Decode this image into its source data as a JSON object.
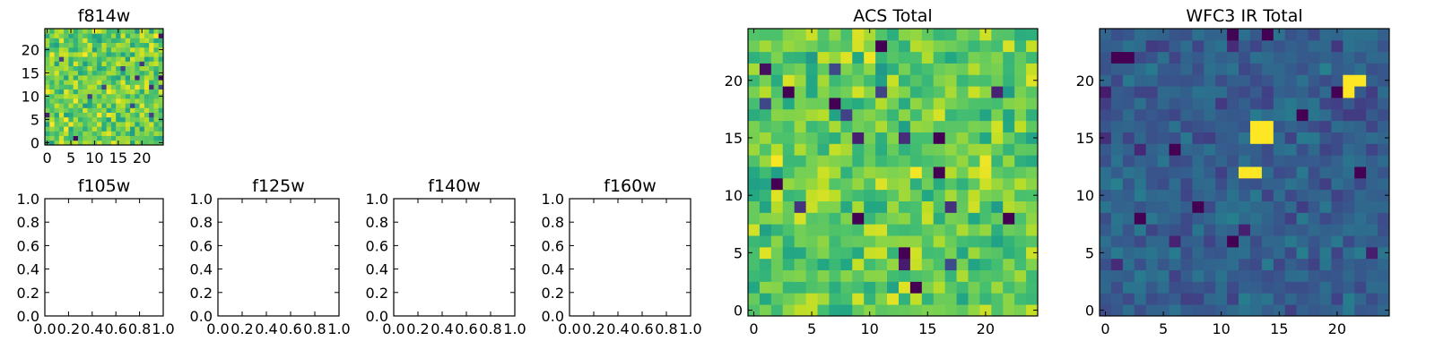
{
  "figure": {
    "panels_count": 7
  },
  "chart_data": [
    {
      "id": "f814w",
      "type": "heatmap",
      "title": "f814w",
      "grid_size": 25,
      "colormap": "viridis",
      "seed": 814,
      "mean": 0.78,
      "spread": 0.26,
      "hotspots": [],
      "xticks": [
        0,
        5,
        10,
        15,
        20
      ],
      "yticks": [
        0,
        5,
        10,
        15,
        20
      ],
      "xlim": [
        -0.5,
        24.5
      ],
      "ylim": [
        -0.5,
        24.5
      ]
    },
    {
      "id": "f105w",
      "type": "empty",
      "title": "f105w",
      "xticks": [
        "0.0",
        "0.2",
        "0.4",
        "0.6",
        "0.8",
        "1.0"
      ],
      "yticks": [
        "0.0",
        "0.2",
        "0.4",
        "0.6",
        "0.8",
        "1.0"
      ],
      "xlim": [
        0,
        1
      ],
      "ylim": [
        0,
        1
      ]
    },
    {
      "id": "f125w",
      "type": "empty",
      "title": "f125w",
      "xticks": [
        "0.0",
        "0.2",
        "0.4",
        "0.6",
        "0.8",
        "1.0"
      ],
      "yticks": [
        "0.0",
        "0.2",
        "0.4",
        "0.6",
        "0.8",
        "1.0"
      ],
      "xlim": [
        0,
        1
      ],
      "ylim": [
        0,
        1
      ]
    },
    {
      "id": "f140w",
      "type": "empty",
      "title": "f140w",
      "xticks": [
        "0.0",
        "0.2",
        "0.4",
        "0.6",
        "0.8",
        "1.0"
      ],
      "yticks": [
        "0.0",
        "0.2",
        "0.4",
        "0.6",
        "0.8",
        "1.0"
      ],
      "xlim": [
        0,
        1
      ],
      "ylim": [
        0,
        1
      ]
    },
    {
      "id": "f160w",
      "type": "empty",
      "title": "f160w",
      "xticks": [
        "0.0",
        "0.2",
        "0.4",
        "0.6",
        "0.8",
        "1.0"
      ],
      "yticks": [
        "0.0",
        "0.2",
        "0.4",
        "0.6",
        "0.8",
        "1.0"
      ],
      "xlim": [
        0,
        1
      ],
      "ylim": [
        0,
        1
      ]
    },
    {
      "id": "acs_total",
      "type": "heatmap",
      "title": "ACS Total",
      "grid_size": 25,
      "colormap": "viridis",
      "seed": 4242,
      "mean": 0.76,
      "spread": 0.24,
      "hotspots": [],
      "dark_cells": [
        [
          3,
          19
        ],
        [
          7,
          18
        ],
        [
          11,
          23
        ],
        [
          13,
          5
        ],
        [
          14,
          2
        ],
        [
          16,
          15
        ],
        [
          16,
          12
        ],
        [
          22,
          8
        ],
        [
          9,
          8
        ],
        [
          2,
          11
        ]
      ],
      "xticks": [
        0,
        5,
        10,
        15,
        20
      ],
      "yticks": [
        0,
        5,
        10,
        15,
        20
      ],
      "xlim": [
        -0.5,
        24.5
      ],
      "ylim": [
        -0.5,
        24.5
      ]
    },
    {
      "id": "wfc3_ir_total",
      "type": "heatmap",
      "title": "WFC3 IR Total",
      "grid_size": 25,
      "colormap": "viridis",
      "seed": 1600,
      "mean": 0.3,
      "spread": 0.14,
      "hotspots": [
        [
          13,
          16
        ],
        [
          14,
          16
        ],
        [
          13,
          15
        ],
        [
          14,
          15
        ],
        [
          21,
          20
        ],
        [
          22,
          20
        ],
        [
          12,
          12
        ],
        [
          13,
          12
        ],
        [
          21,
          19
        ]
      ],
      "dark_cells": [
        [
          1,
          22
        ],
        [
          2,
          22
        ],
        [
          14,
          24
        ],
        [
          17,
          17
        ],
        [
          3,
          8
        ],
        [
          22,
          12
        ],
        [
          11,
          6
        ],
        [
          8,
          9
        ],
        [
          6,
          14
        ]
      ],
      "xticks": [
        0,
        5,
        10,
        15,
        20
      ],
      "yticks": [
        0,
        5,
        10,
        15,
        20
      ],
      "xlim": [
        -0.5,
        24.5
      ],
      "ylim": [
        -0.5,
        24.5
      ]
    }
  ]
}
